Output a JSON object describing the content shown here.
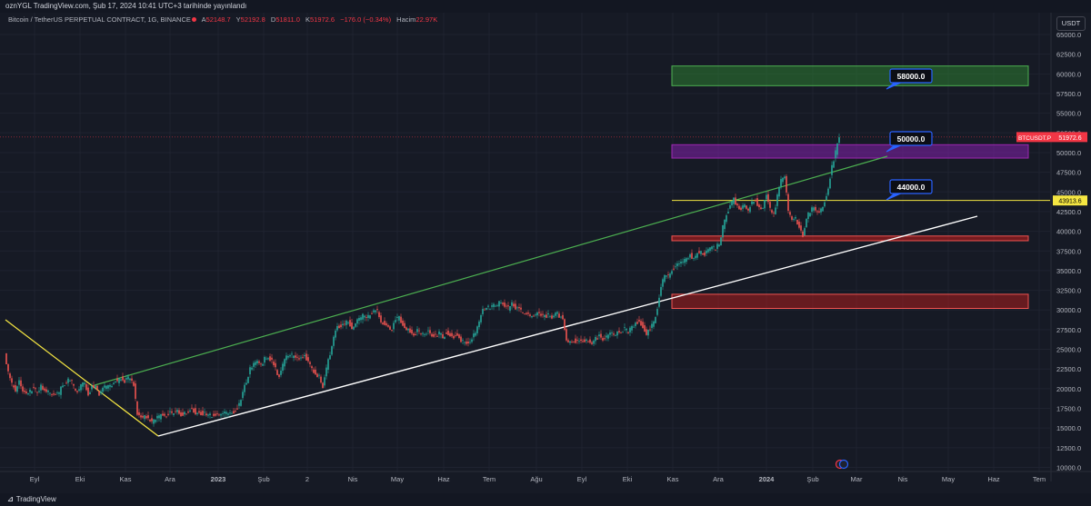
{
  "header": {
    "published": "oznYGL TradingView.com, Şub 17, 2024 10:41 UTC+3 tarihinde yayınlandı"
  },
  "legend": {
    "symbol": "Bitcoin / TetherUS PERPETUAL CONTRACT, 1G, BINANCE",
    "open_label": "A",
    "open": "52148.7",
    "high_label": "Y",
    "high": "52192.8",
    "low_label": "D",
    "low": "51811.0",
    "close_label": "K",
    "close": "51972.6",
    "change": "−176.0 (−0.34%)",
    "volume_label": "Hacim",
    "volume": "22.97K"
  },
  "currency_label": "USDT",
  "footer": {
    "brand": "TradingView"
  },
  "colors": {
    "background": "#161a25",
    "up": "#26a69a",
    "down": "#ef5350",
    "green_zone": "#2e7d32",
    "purple_zone": "#7b1fa2",
    "red_zone": "#b71c1c",
    "yellow_line": "#f5e642",
    "green_line": "#4caf50",
    "price_tag": "#f23645"
  },
  "chart_data": {
    "type": "candlestick",
    "symbol": "BTCUSDT.P",
    "interval": "1D",
    "ylim": [
      10000,
      67500
    ],
    "y_ticks": [
      "10000.0",
      "12500.0",
      "15000.0",
      "17500.0",
      "20000.0",
      "22500.0",
      "25000.0",
      "27500.0",
      "30000.0",
      "32500.0",
      "35000.0",
      "37500.0",
      "40000.0",
      "42500.0",
      "45000.0",
      "47500.0",
      "50000.0",
      "52500.0",
      "55000.0",
      "57500.0",
      "60000.0",
      "62500.0",
      "65000.0"
    ],
    "x_ticks": [
      "Eyl",
      "Eki",
      "Kas",
      "Ara",
      "2023",
      "Şub",
      "2",
      "Nis",
      "May",
      "Haz",
      "Tem",
      "Ağu",
      "Eyl",
      "Eki",
      "Kas",
      "Ara",
      "2024",
      "Şub",
      "Mar",
      "Nis",
      "May",
      "Haz",
      "Tem"
    ],
    "price_points": [
      [
        0,
        24800
      ],
      [
        4,
        22000
      ],
      [
        8,
        20500
      ],
      [
        12,
        19800
      ],
      [
        16,
        20800
      ],
      [
        20,
        19600
      ],
      [
        24,
        19500
      ],
      [
        28,
        19600
      ],
      [
        32,
        20200
      ],
      [
        36,
        19300
      ],
      [
        40,
        20300
      ],
      [
        44,
        19800
      ],
      [
        48,
        19600
      ],
      [
        52,
        19200
      ],
      [
        56,
        19500
      ],
      [
        60,
        19400
      ],
      [
        64,
        20600
      ],
      [
        68,
        20800
      ],
      [
        72,
        21300
      ],
      [
        76,
        20200
      ],
      [
        80,
        19600
      ],
      [
        84,
        20500
      ],
      [
        88,
        20600
      ],
      [
        92,
        19300
      ],
      [
        96,
        20200
      ],
      [
        100,
        20500
      ],
      [
        104,
        19400
      ],
      [
        108,
        20000
      ],
      [
        112,
        20300
      ],
      [
        116,
        20200
      ],
      [
        120,
        21000
      ],
      [
        124,
        21000
      ],
      [
        128,
        21300
      ],
      [
        132,
        21000
      ],
      [
        136,
        21300
      ],
      [
        140,
        20900
      ],
      [
        142,
        20500
      ],
      [
        146,
        16800
      ],
      [
        150,
        16300
      ],
      [
        154,
        16500
      ],
      [
        158,
        16200
      ],
      [
        162,
        15800
      ],
      [
        166,
        16100
      ],
      [
        170,
        16400
      ],
      [
        174,
        16800
      ],
      [
        178,
        16500
      ],
      [
        182,
        17000
      ],
      [
        186,
        16900
      ],
      [
        190,
        17200
      ],
      [
        194,
        16700
      ],
      [
        198,
        17000
      ],
      [
        202,
        17100
      ],
      [
        206,
        17600
      ],
      [
        210,
        16900
      ],
      [
        214,
        17000
      ],
      [
        218,
        16800
      ],
      [
        222,
        16700
      ],
      [
        226,
        16600
      ],
      [
        230,
        16600
      ],
      [
        234,
        16800
      ],
      [
        238,
        16700
      ],
      [
        242,
        16800
      ],
      [
        246,
        16700
      ],
      [
        250,
        17000
      ],
      [
        254,
        17200
      ],
      [
        258,
        18000
      ],
      [
        262,
        19500
      ],
      [
        266,
        21000
      ],
      [
        270,
        22500
      ],
      [
        274,
        23000
      ],
      [
        278,
        23500
      ],
      [
        282,
        23000
      ],
      [
        286,
        23800
      ],
      [
        290,
        24000
      ],
      [
        294,
        23400
      ],
      [
        298,
        22500
      ],
      [
        302,
        21500
      ],
      [
        306,
        23000
      ],
      [
        310,
        24000
      ],
      [
        314,
        24300
      ],
      [
        318,
        24000
      ],
      [
        322,
        23700
      ],
      [
        326,
        23900
      ],
      [
        330,
        24200
      ],
      [
        334,
        23500
      ],
      [
        338,
        22400
      ],
      [
        342,
        22000
      ],
      [
        346,
        21500
      ],
      [
        350,
        20300
      ],
      [
        354,
        22500
      ],
      [
        358,
        24500
      ],
      [
        362,
        26500
      ],
      [
        366,
        28000
      ],
      [
        370,
        27800
      ],
      [
        374,
        28200
      ],
      [
        378,
        28500
      ],
      [
        382,
        27800
      ],
      [
        386,
        28400
      ],
      [
        390,
        28700
      ],
      [
        394,
        29200
      ],
      [
        398,
        28800
      ],
      [
        402,
        29500
      ],
      [
        406,
        30000
      ],
      [
        410,
        29800
      ],
      [
        414,
        28500
      ],
      [
        418,
        28300
      ],
      [
        422,
        28000
      ],
      [
        426,
        27500
      ],
      [
        430,
        28800
      ],
      [
        434,
        29000
      ],
      [
        438,
        28200
      ],
      [
        442,
        27700
      ],
      [
        446,
        27300
      ],
      [
        450,
        26800
      ],
      [
        454,
        27300
      ],
      [
        458,
        27000
      ],
      [
        462,
        26900
      ],
      [
        466,
        27200
      ],
      [
        470,
        26800
      ],
      [
        474,
        26700
      ],
      [
        478,
        27000
      ],
      [
        482,
        26600
      ],
      [
        486,
        27200
      ],
      [
        490,
        26900
      ],
      [
        494,
        26500
      ],
      [
        498,
        27000
      ],
      [
        502,
        26100
      ],
      [
        506,
        25800
      ],
      [
        510,
        25600
      ],
      [
        514,
        26300
      ],
      [
        518,
        27200
      ],
      [
        522,
        28500
      ],
      [
        526,
        30100
      ],
      [
        530,
        30500
      ],
      [
        534,
        30300
      ],
      [
        538,
        30600
      ],
      [
        542,
        30700
      ],
      [
        546,
        31000
      ],
      [
        550,
        30500
      ],
      [
        554,
        30200
      ],
      [
        558,
        30700
      ],
      [
        562,
        30300
      ],
      [
        566,
        30000
      ],
      [
        570,
        29800
      ],
      [
        574,
        29600
      ],
      [
        578,
        29300
      ],
      [
        582,
        29400
      ],
      [
        586,
        29500
      ],
      [
        590,
        29300
      ],
      [
        594,
        29200
      ],
      [
        598,
        29300
      ],
      [
        602,
        29100
      ],
      [
        606,
        29600
      ],
      [
        610,
        29300
      ],
      [
        614,
        29000
      ],
      [
        618,
        26200
      ],
      [
        622,
        26000
      ],
      [
        626,
        26100
      ],
      [
        630,
        25900
      ],
      [
        634,
        26000
      ],
      [
        638,
        26200
      ],
      [
        642,
        26100
      ],
      [
        646,
        25800
      ],
      [
        650,
        26300
      ],
      [
        654,
        26700
      ],
      [
        658,
        26200
      ],
      [
        662,
        26500
      ],
      [
        666,
        27000
      ],
      [
        670,
        26900
      ],
      [
        674,
        27100
      ],
      [
        678,
        27300
      ],
      [
        682,
        27600
      ],
      [
        686,
        27200
      ],
      [
        690,
        27800
      ],
      [
        694,
        28300
      ],
      [
        698,
        28600
      ],
      [
        702,
        27900
      ],
      [
        706,
        27000
      ],
      [
        710,
        27500
      ],
      [
        714,
        28500
      ],
      [
        718,
        30200
      ],
      [
        722,
        33000
      ],
      [
        726,
        34500
      ],
      [
        730,
        34200
      ],
      [
        734,
        35000
      ],
      [
        738,
        35500
      ],
      [
        742,
        35800
      ],
      [
        746,
        36000
      ],
      [
        750,
        36500
      ],
      [
        754,
        37000
      ],
      [
        758,
        36500
      ],
      [
        762,
        37200
      ],
      [
        766,
        37500
      ],
      [
        770,
        37000
      ],
      [
        774,
        37800
      ],
      [
        778,
        38000
      ],
      [
        782,
        37800
      ],
      [
        786,
        38500
      ],
      [
        790,
        40500
      ],
      [
        794,
        42000
      ],
      [
        798,
        43500
      ],
      [
        802,
        44000
      ],
      [
        806,
        43200
      ],
      [
        810,
        42800
      ],
      [
        814,
        43500
      ],
      [
        818,
        42500
      ],
      [
        822,
        43800
      ],
      [
        826,
        44000
      ],
      [
        830,
        42900
      ],
      [
        834,
        43200
      ],
      [
        838,
        44500
      ],
      [
        842,
        42800
      ],
      [
        846,
        42000
      ],
      [
        850,
        44500
      ],
      [
        854,
        46500
      ],
      [
        858,
        47000
      ],
      [
        862,
        42500
      ],
      [
        866,
        41500
      ],
      [
        870,
        41700
      ],
      [
        874,
        40500
      ],
      [
        878,
        39500
      ],
      [
        882,
        41800
      ],
      [
        886,
        42500
      ],
      [
        890,
        43000
      ],
      [
        894,
        42300
      ],
      [
        898,
        42800
      ],
      [
        902,
        43800
      ],
      [
        906,
        45500
      ],
      [
        910,
        48200
      ],
      [
        914,
        50000
      ],
      [
        918,
        51972
      ]
    ],
    "annotations": [
      {
        "type": "zone",
        "color": "green",
        "price_bottom": 58500,
        "price_top": 61000
      },
      {
        "type": "zone",
        "color": "purple",
        "price_bottom": 49300,
        "price_top": 51000
      },
      {
        "type": "zone",
        "color": "red",
        "price_bottom": 38800,
        "price_top": 39400
      },
      {
        "type": "zone",
        "color": "red",
        "price_bottom": 30200,
        "price_top": 32000
      },
      {
        "type": "label",
        "text": "58000.0"
      },
      {
        "type": "label",
        "text": "50000.0"
      },
      {
        "type": "label",
        "text": "44000.0"
      },
      {
        "type": "hline",
        "color": "yellow",
        "price": 43913.6,
        "tag": "43913.6"
      },
      {
        "type": "last_price",
        "price": 51972.6,
        "tag_symbol": "BTCUSDT.P",
        "tag_value": "51972.6"
      }
    ]
  }
}
